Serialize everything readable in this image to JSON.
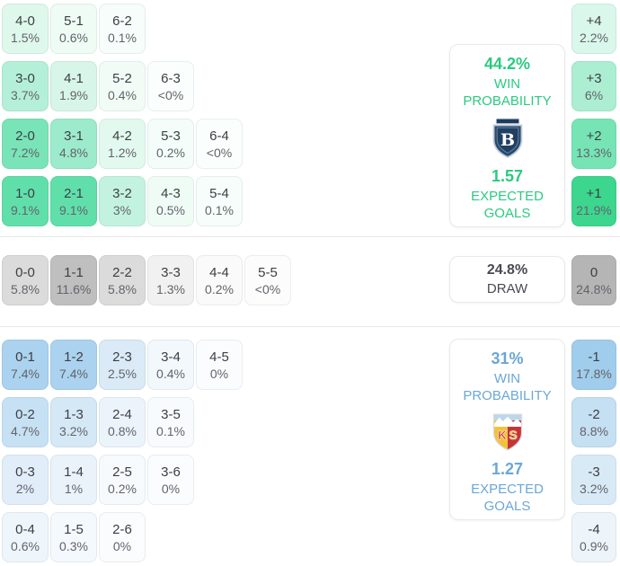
{
  "colors": {
    "home_accent": "#2bca80",
    "away_accent": "#6ba7d6",
    "draw_text": "#4a4a52",
    "home_strong_cell": "#3cd68e",
    "away_strong_cell": "#a0cdeb",
    "draw_strong_cell": "#b5b5b5"
  },
  "chart_data": {
    "type": "heatmap",
    "title": "Match correct-score probability matrix",
    "home_team": {
      "win_probability": "44.2%",
      "win_label": [
        "WIN",
        "PROBABILITY"
      ],
      "expected_goals": "1.57",
      "goals_label": [
        "EXPECTED",
        "GOALS"
      ],
      "crest": "basaksehir-crest",
      "score_rows": [
        [
          {
            "score": "4-0",
            "pct": "1.5%",
            "bg": "#def8ec"
          },
          {
            "score": "5-1",
            "pct": "0.6%",
            "bg": "#eefcf5"
          },
          {
            "score": "6-2",
            "pct": "0.1%",
            "bg": "#f6fdfa"
          }
        ],
        [
          {
            "score": "3-0",
            "pct": "3.7%",
            "bg": "#b4f0d8"
          },
          {
            "score": "4-1",
            "pct": "1.9%",
            "bg": "#d7f6e9"
          },
          {
            "score": "5-2",
            "pct": "0.4%",
            "bg": "#f1fcf7"
          },
          {
            "score": "6-3",
            "pct": "<0%",
            "bg": "#fafefc"
          }
        ],
        [
          {
            "score": "2-0",
            "pct": "7.2%",
            "bg": "#79e4b8"
          },
          {
            "score": "3-1",
            "pct": "4.8%",
            "bg": "#9cebcc"
          },
          {
            "score": "4-2",
            "pct": "1.2%",
            "bg": "#e2f9ef"
          },
          {
            "score": "5-3",
            "pct": "0.2%",
            "bg": "#f4fdf9"
          },
          {
            "score": "6-4",
            "pct": "<0%",
            "bg": "#fafefc"
          }
        ],
        [
          {
            "score": "1-0",
            "pct": "9.1%",
            "bg": "#60dfab"
          },
          {
            "score": "2-1",
            "pct": "9.1%",
            "bg": "#60dfab"
          },
          {
            "score": "3-2",
            "pct": "3%",
            "bg": "#c3f3e0"
          },
          {
            "score": "4-3",
            "pct": "0.5%",
            "bg": "#effcf6"
          },
          {
            "score": "5-4",
            "pct": "0.1%",
            "bg": "#f6fdfa"
          }
        ]
      ],
      "goal_margins": [
        {
          "diff": "+4",
          "pct": "2.2%",
          "bg": "#d9f7ea"
        },
        {
          "diff": "+3",
          "pct": "6%",
          "bg": "#abeed2"
        },
        {
          "diff": "+2",
          "pct": "13.3%",
          "bg": "#76e4b5"
        },
        {
          "diff": "+1",
          "pct": "21.9%",
          "bg": "#3cd68e"
        }
      ]
    },
    "draw": {
      "probability": "24.8%",
      "label": "DRAW",
      "scores": [
        {
          "score": "0-0",
          "pct": "5.8%",
          "bg": "#dbdbdb"
        },
        {
          "score": "1-1",
          "pct": "11.6%",
          "bg": "#bfbfbf"
        },
        {
          "score": "2-2",
          "pct": "5.8%",
          "bg": "#dbdbdb"
        },
        {
          "score": "3-3",
          "pct": "1.3%",
          "bg": "#f1f1f1"
        },
        {
          "score": "4-4",
          "pct": "0.2%",
          "bg": "#fafafa"
        },
        {
          "score": "5-5",
          "pct": "<0%",
          "bg": "#fcfcfc"
        }
      ],
      "goal_margin": {
        "diff": "0",
        "pct": "24.8%",
        "bg": "#b5b5b5"
      }
    },
    "away_team": {
      "win_probability": "31%",
      "win_label": [
        "WIN",
        "PROBABILITY"
      ],
      "expected_goals": "1.27",
      "goals_label": [
        "EXPECTED",
        "GOALS"
      ],
      "crest": "kayserispor-crest",
      "score_rows": [
        [
          {
            "score": "0-1",
            "pct": "7.4%",
            "bg": "#abd2ee"
          },
          {
            "score": "1-2",
            "pct": "7.4%",
            "bg": "#abd2ee"
          },
          {
            "score": "2-3",
            "pct": "2.5%",
            "bg": "#daeaf7"
          },
          {
            "score": "3-4",
            "pct": "0.4%",
            "bg": "#f2f8fc"
          },
          {
            "score": "4-5",
            "pct": "0%",
            "bg": "#fafcfe"
          }
        ],
        [
          {
            "score": "0-2",
            "pct": "4.7%",
            "bg": "#c7e1f4"
          },
          {
            "score": "1-3",
            "pct": "3.2%",
            "bg": "#d4e8f6"
          },
          {
            "score": "2-4",
            "pct": "0.8%",
            "bg": "#ecf4fb"
          },
          {
            "score": "3-5",
            "pct": "0.1%",
            "bg": "#f8fbfd"
          }
        ],
        [
          {
            "score": "0-3",
            "pct": "2%",
            "bg": "#e1eef9"
          },
          {
            "score": "1-4",
            "pct": "1%",
            "bg": "#eaf3fa"
          },
          {
            "score": "2-5",
            "pct": "0.2%",
            "bg": "#f6fafd"
          },
          {
            "score": "3-6",
            "pct": "0%",
            "bg": "#fafcfe"
          }
        ],
        [
          {
            "score": "0-4",
            "pct": "0.6%",
            "bg": "#eff6fb"
          },
          {
            "score": "1-5",
            "pct": "0.3%",
            "bg": "#f4f9fd"
          },
          {
            "score": "2-6",
            "pct": "0%",
            "bg": "#fafcfe"
          }
        ]
      ],
      "goal_margins": [
        {
          "diff": "-1",
          "pct": "17.8%",
          "bg": "#a0cdeb"
        },
        {
          "diff": "-2",
          "pct": "8.8%",
          "bg": "#c5dff3"
        },
        {
          "diff": "-3",
          "pct": "3.2%",
          "bg": "#d9eaf7"
        },
        {
          "diff": "-4",
          "pct": "0.9%",
          "bg": "#edf4fa"
        }
      ]
    }
  }
}
